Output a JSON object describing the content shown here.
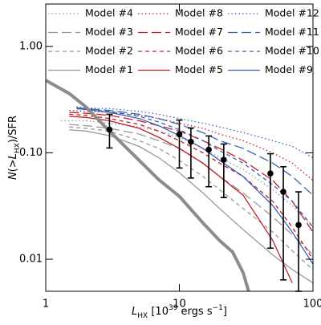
{
  "chart_data": {
    "type": "line",
    "xlim": [
      1,
      100
    ],
    "ylim": [
      0.005,
      2.5
    ],
    "log_x": true,
    "log_y": true,
    "xticks": [
      1,
      10,
      100
    ],
    "yticks": [
      0.01,
      {
        "value": 0.1,
        "label": "0.10"
      },
      {
        "value": 1,
        "label": "1.00"
      }
    ],
    "xlabel": [
      {
        "text": "L",
        "italic": true
      },
      {
        "text": "HX",
        "shift": "sub"
      },
      {
        "text": " [10"
      },
      {
        "text": "39",
        "shift": "super"
      },
      {
        "text": " ergs s"
      },
      {
        "text": "−1",
        "shift": "super"
      },
      {
        "text": "]"
      }
    ],
    "ylabel": [
      {
        "text": "N",
        "italic": true
      },
      {
        "text": "(>"
      },
      {
        "text": "L",
        "italic": true
      },
      {
        "text": "HX",
        "shift": "sub"
      },
      {
        "text": ")/SFR"
      }
    ],
    "series": [
      {
        "name": "Model #1",
        "color": "#999999",
        "dash": "solid",
        "x": [
          1.5,
          2,
          3,
          5,
          7,
          10,
          15,
          20,
          30,
          50,
          70,
          100
        ],
        "values": [
          0.165,
          0.16,
          0.145,
          0.115,
          0.09,
          0.065,
          0.042,
          0.03,
          0.019,
          0.011,
          0.008,
          0.006
        ]
      },
      {
        "name": "Model #2",
        "color": "#999999",
        "dash": "dashed",
        "x": [
          1.5,
          2,
          3,
          5,
          7,
          10,
          15,
          20,
          30,
          50,
          70,
          100
        ],
        "values": [
          0.175,
          0.17,
          0.16,
          0.13,
          0.11,
          0.085,
          0.06,
          0.045,
          0.03,
          0.018,
          0.012,
          0.008
        ]
      },
      {
        "name": "Model #3",
        "color": "#999999",
        "dash": "longdash",
        "x": [
          1.5,
          2,
          3,
          5,
          7,
          10,
          15,
          20,
          30,
          50,
          70,
          100
        ],
        "values": [
          0.185,
          0.18,
          0.17,
          0.15,
          0.13,
          0.11,
          0.08,
          0.06,
          0.042,
          0.025,
          0.017,
          0.011
        ]
      },
      {
        "name": "Model #4",
        "color": "#999999",
        "dash": "dotted",
        "x": [
          1.3,
          2,
          3,
          5,
          7,
          10,
          15,
          20,
          30,
          50,
          70,
          100
        ],
        "values": [
          0.2,
          0.2,
          0.19,
          0.175,
          0.16,
          0.14,
          0.11,
          0.09,
          0.07,
          0.045,
          0.032,
          0.02
        ]
      },
      {
        "name": "Model #5",
        "color": "#c0202a",
        "dash": "solid",
        "x": [
          1.5,
          2,
          3,
          5,
          7,
          10,
          15,
          20,
          30,
          50,
          70,
          100
        ],
        "values": [
          0.22,
          0.215,
          0.2,
          0.17,
          0.14,
          0.11,
          0.08,
          0.06,
          0.04,
          0.015,
          0.006,
          null
        ]
      },
      {
        "name": "Model #6",
        "color": "#c0202a",
        "dash": "dashed",
        "x": [
          1.5,
          2,
          3,
          5,
          7,
          10,
          15,
          20,
          30,
          50,
          70,
          100
        ],
        "values": [
          0.23,
          0.225,
          0.21,
          0.185,
          0.16,
          0.13,
          0.1,
          0.08,
          0.06,
          0.035,
          0.02,
          0.01
        ]
      },
      {
        "name": "Model #7",
        "color": "#c0202a",
        "dash": "longdash",
        "x": [
          1.5,
          2,
          3,
          5,
          7,
          10,
          15,
          20,
          30,
          50,
          70,
          100
        ],
        "values": [
          0.24,
          0.235,
          0.225,
          0.2,
          0.18,
          0.16,
          0.13,
          0.11,
          0.085,
          0.055,
          0.035,
          0.018
        ]
      },
      {
        "name": "Model #8",
        "color": "#c0202a",
        "dash": "dotted",
        "x": [
          1.5,
          2,
          3,
          5,
          7,
          10,
          15,
          20,
          30,
          50,
          70,
          100
        ],
        "values": [
          0.25,
          0.245,
          0.24,
          0.225,
          0.21,
          0.19,
          0.17,
          0.15,
          0.13,
          0.1,
          0.08,
          0.055
        ]
      },
      {
        "name": "Model #9",
        "color": "#3a62b8",
        "dash": "solid",
        "x": [
          1.7,
          2,
          3,
          5,
          7,
          10,
          15,
          20,
          30,
          50,
          70,
          100
        ],
        "values": [
          0.26,
          0.255,
          0.24,
          0.21,
          0.18,
          0.145,
          0.11,
          0.085,
          0.06,
          0.032,
          0.018,
          0.009
        ]
      },
      {
        "name": "Model #10",
        "color": "#3a62b8",
        "dash": "dashed",
        "x": [
          1.7,
          2,
          3,
          5,
          7,
          10,
          15,
          20,
          30,
          50,
          70,
          100
        ],
        "values": [
          0.26,
          0.255,
          0.245,
          0.22,
          0.195,
          0.165,
          0.13,
          0.105,
          0.08,
          0.05,
          0.035,
          0.02
        ]
      },
      {
        "name": "Model #11",
        "color": "#3a62b8",
        "dash": "longdash",
        "x": [
          1.7,
          2,
          3,
          5,
          7,
          10,
          15,
          20,
          30,
          50,
          70,
          100
        ],
        "values": [
          0.265,
          0.26,
          0.25,
          0.23,
          0.21,
          0.185,
          0.155,
          0.13,
          0.11,
          0.08,
          0.06,
          0.04
        ]
      },
      {
        "name": "Model #12",
        "color": "#3a62b8",
        "dash": "dotted",
        "x": [
          1.7,
          2,
          3,
          5,
          7,
          10,
          15,
          20,
          30,
          50,
          70,
          100
        ],
        "values": [
          0.27,
          0.265,
          0.26,
          0.245,
          0.23,
          0.21,
          0.19,
          0.175,
          0.155,
          0.13,
          0.115,
          0.09
        ]
      },
      {
        "color": "#8c8c8c",
        "dash": "solid",
        "width": 4,
        "x": [
          1,
          1.5,
          2,
          3,
          5,
          7,
          10,
          15,
          20,
          25,
          30,
          33
        ],
        "values": [
          0.48,
          0.36,
          0.27,
          0.16,
          0.085,
          0.056,
          0.039,
          0.022,
          0.015,
          0.0117,
          0.0075,
          0.005
        ]
      }
    ],
    "points": {
      "color": "#000000",
      "x": [
        3,
        10,
        12.2,
        16.6,
        21.5,
        48,
        60,
        78
      ],
      "y": [
        0.165,
        0.149,
        0.127,
        0.107,
        0.086,
        0.064,
        0.043,
        0.021
      ],
      "lower": [
        0.111,
        0.072,
        0.058,
        0.048,
        0.038,
        0.0127,
        0.0064,
        0.005
      ],
      "upper": [
        0.23,
        0.203,
        0.171,
        0.144,
        0.121,
        0.098,
        0.074,
        0.043
      ]
    }
  }
}
